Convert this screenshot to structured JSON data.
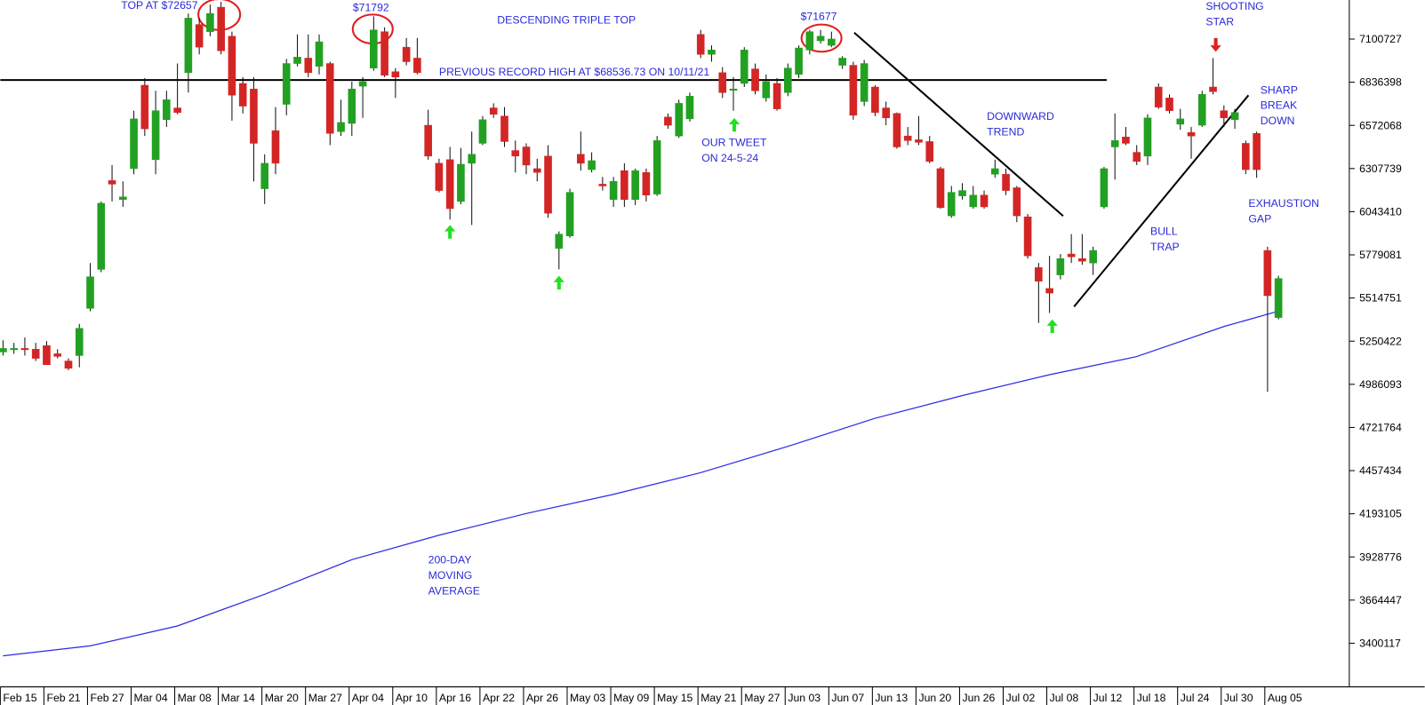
{
  "chart_data": {
    "type": "candlestick",
    "ylim": [
      3133000,
      7340000
    ],
    "yticks": [
      7100727,
      6836398,
      6572068,
      6307739,
      6043410,
      5779081,
      5514751,
      5250422,
      4986093,
      4721764,
      4457434,
      4193105,
      3928776,
      3664447,
      3400117
    ],
    "xlim": [
      -0.25,
      123.5
    ],
    "xticks": [
      {
        "value": 0,
        "label": "Feb 15"
      },
      {
        "value": 4,
        "label": "Feb 21"
      },
      {
        "value": 8,
        "label": "Feb 27"
      },
      {
        "value": 12,
        "label": "Mar 04"
      },
      {
        "value": 16,
        "label": "Mar 08"
      },
      {
        "value": 20,
        "label": "Mar 14"
      },
      {
        "value": 24,
        "label": "Mar 20"
      },
      {
        "value": 28,
        "label": "Mar 27"
      },
      {
        "value": 32,
        "label": "Apr 04"
      },
      {
        "value": 36,
        "label": "Apr 10"
      },
      {
        "value": 40,
        "label": "Apr 16"
      },
      {
        "value": 44,
        "label": "Apr 22"
      },
      {
        "value": 48,
        "label": "Apr 26"
      },
      {
        "value": 52,
        "label": "May 03"
      },
      {
        "value": 56,
        "label": "May 09"
      },
      {
        "value": 60,
        "label": "May 15"
      },
      {
        "value": 64,
        "label": "May 21"
      },
      {
        "value": 68,
        "label": "May 27"
      },
      {
        "value": 72,
        "label": "Jun 03"
      },
      {
        "value": 76,
        "label": "Jun 07"
      },
      {
        "value": 80,
        "label": "Jun 13"
      },
      {
        "value": 84,
        "label": "Jun 20"
      },
      {
        "value": 88,
        "label": "Jun 26"
      },
      {
        "value": 92,
        "label": "Jul 02"
      },
      {
        "value": 96,
        "label": "Jul 08"
      },
      {
        "value": 100,
        "label": "Jul 12"
      },
      {
        "value": 104,
        "label": "Jul 18"
      },
      {
        "value": 108,
        "label": "Jul 24"
      },
      {
        "value": 112,
        "label": "Jul 30"
      },
      {
        "value": 116,
        "label": "Aug 05"
      }
    ],
    "up_color": "#22a022",
    "down_color": "#d42525",
    "open": [
      5184000,
      5201000,
      5206000,
      5201000,
      5223000,
      5173000,
      5129000,
      5162000,
      5451000,
      5690000,
      6234000,
      6118000,
      6307000,
      6818000,
      6362000,
      6607000,
      6679000,
      6895000,
      7190000,
      7146000,
      7296000,
      7118000,
      6829000,
      6795000,
      6184000,
      6540000,
      6701000,
      6951000,
      6984000,
      6934000,
      6951000,
      6534000,
      6584000,
      6812000,
      6923000,
      7146000,
      6901000,
      7051000,
      6984000,
      6573000,
      6340000,
      6362000,
      6106000,
      6340000,
      6462000,
      6679000,
      6629000,
      6418000,
      6440000,
      6307000,
      6384000,
      5818000,
      5895000,
      6395000,
      6301000,
      6212000,
      6118000,
      6295000,
      6118000,
      6284000,
      6151000,
      6623000,
      6507000,
      6612000,
      7129000,
      7007000,
      6895000,
      6790000,
      6829000,
      6918000,
      6740000,
      6829000,
      6773000,
      6884000,
      7034000,
      7090000,
      7062000,
      6940000,
      6940000,
      6718000,
      6807000,
      6679000,
      6645000,
      6507000,
      6484000,
      6473000,
      6307000,
      6018000,
      6140000,
      6073000,
      6145000,
      6273000,
      6273000,
      6190000,
      6012000,
      5701000,
      5573000,
      5656000,
      5784000,
      5756000,
      5729000,
      6073000,
      6440000,
      6501000,
      6407000,
      6384000,
      6807000,
      6740000,
      6579000,
      6529000,
      6573000,
      6807000,
      6662000,
      6607000,
      6462000,
      6523000,
      5806000,
      5395000
    ],
    "high": [
      5256000,
      5240000,
      5273000,
      5240000,
      5251000,
      5201000,
      5145000,
      5356000,
      5729000,
      6106000,
      6329000,
      6229000,
      6662000,
      6862000,
      6784000,
      6784000,
      6951000,
      7257000,
      7229000,
      7312000,
      7329000,
      7146000,
      6868000,
      6868000,
      6395000,
      6684000,
      6979000,
      7129000,
      7129000,
      7129000,
      6962000,
      6729000,
      6840000,
      6868000,
      7240000,
      7173000,
      6923000,
      7107000,
      7107000,
      6668000,
      6368000,
      6440000,
      6434000,
      6534000,
      6629000,
      6707000,
      6684000,
      6479000,
      6462000,
      6368000,
      6451000,
      5923000,
      6184000,
      6534000,
      6407000,
      6256000,
      6256000,
      6340000,
      6307000,
      6307000,
      6507000,
      6645000,
      6729000,
      6773000,
      7157000,
      7062000,
      6929000,
      6868000,
      7051000,
      6951000,
      6884000,
      6862000,
      6951000,
      7062000,
      7157000,
      7157000,
      7146000,
      6996000,
      6962000,
      6973000,
      6818000,
      6718000,
      6651000,
      6562000,
      6629000,
      6507000,
      6318000,
      6201000,
      6218000,
      6201000,
      6173000,
      6362000,
      6307000,
      6201000,
      6029000,
      5729000,
      5773000,
      5784000,
      5906000,
      5906000,
      5829000,
      6318000,
      6645000,
      6562000,
      6451000,
      6640000,
      6829000,
      6762000,
      6673000,
      6562000,
      6784000,
      6984000,
      6695000,
      6673000,
      6479000,
      6534000,
      5829000,
      5651000
    ],
    "low": [
      5162000,
      5173000,
      5162000,
      5129000,
      5106000,
      5145000,
      5073000,
      5090000,
      5434000,
      5673000,
      6106000,
      6073000,
      6273000,
      6507000,
      6273000,
      6562000,
      6640000,
      6773000,
      7007000,
      7118000,
      7007000,
      6601000,
      6645000,
      6229000,
      6090000,
      6273000,
      6634000,
      6934000,
      6868000,
      6884000,
      6451000,
      6507000,
      6507000,
      6618000,
      6907000,
      6868000,
      6740000,
      6940000,
      6884000,
      6362000,
      6162000,
      5995000,
      6090000,
      5962000,
      6451000,
      6618000,
      6440000,
      6284000,
      6273000,
      6229000,
      6006000,
      5690000,
      5884000,
      6295000,
      6284000,
      6173000,
      6073000,
      6073000,
      6084000,
      6106000,
      6140000,
      6551000,
      6495000,
      6595000,
      6984000,
      6962000,
      6740000,
      6662000,
      6807000,
      6762000,
      6718000,
      6662000,
      6751000,
      6862000,
      7007000,
      7073000,
      7051000,
      6918000,
      6607000,
      6690000,
      6629000,
      6573000,
      6429000,
      6451000,
      6451000,
      6340000,
      6062000,
      6006000,
      6118000,
      6062000,
      6062000,
      6251000,
      6145000,
      5979000,
      5756000,
      5362000,
      5423000,
      5629000,
      5729000,
      5718000,
      5656000,
      6062000,
      6240000,
      6451000,
      6329000,
      6329000,
      6673000,
      6645000,
      6545000,
      6368000,
      6562000,
      6762000,
      6562000,
      6551000,
      6273000,
      6251000,
      4940000,
      5384000
    ],
    "close": [
      5206000,
      5206000,
      5201000,
      5145000,
      5106000,
      5157000,
      5084000,
      5329000,
      5645000,
      6095000,
      6212000,
      6134000,
      6612000,
      6551000,
      6662000,
      6729000,
      6651000,
      7229000,
      7051000,
      7257000,
      7029000,
      6757000,
      6690000,
      6462000,
      6340000,
      6340000,
      6951000,
      6990000,
      6895000,
      7084000,
      6523000,
      6590000,
      6795000,
      6840000,
      7157000,
      6879000,
      6868000,
      6962000,
      6895000,
      6384000,
      6173000,
      6062000,
      6334000,
      6395000,
      6607000,
      6640000,
      6473000,
      6384000,
      6329000,
      6284000,
      6034000,
      5906000,
      6162000,
      6340000,
      6356000,
      6201000,
      6229000,
      6118000,
      6295000,
      6145000,
      6479000,
      6573000,
      6707000,
      6751000,
      7007000,
      7034000,
      6773000,
      6795000,
      7034000,
      6784000,
      6840000,
      6673000,
      6923000,
      7046000,
      7146000,
      7118000,
      7101000,
      6984000,
      6634000,
      6951000,
      6651000,
      6618000,
      6440000,
      6479000,
      6468000,
      6351000,
      6068000,
      6162000,
      6173000,
      6145000,
      6073000,
      6307000,
      6173000,
      6018000,
      5773000,
      5617000,
      5545000,
      5756000,
      5767000,
      5740000,
      5806000,
      6307000,
      6479000,
      6462000,
      6351000,
      6618000,
      6684000,
      6662000,
      6612000,
      6507000,
      6762000,
      6779000,
      6618000,
      6651000,
      6301000,
      6301000,
      5529000,
      5634000
    ],
    "moving_average": {
      "color": "#2a2ae6",
      "x": [
        0,
        8,
        16,
        24,
        32,
        40,
        48,
        56,
        64,
        72,
        80,
        88,
        96,
        104,
        112,
        117
      ],
      "values": [
        3323000,
        3384000,
        3506000,
        3700000,
        3912000,
        4062000,
        4195000,
        4312000,
        4445000,
        4606000,
        4778000,
        4917000,
        5045000,
        5156000,
        5340000,
        5434000
      ]
    },
    "reference_line": 6850000,
    "annotations": {
      "top1": "TOP AT $72657",
      "top2": "$71792",
      "pattern": "DESCENDING TRIPLE TOP",
      "top3": "$71677",
      "record": "PREVIOUS RECORD HIGH AT $68536.73 ON 10/11/21",
      "tweet": [
        "OUR TWEET",
        "ON 24-5-24"
      ],
      "downtrend": [
        "DOWNWARD",
        "TREND"
      ],
      "shooting_star": [
        "SHOOTING",
        "STAR"
      ],
      "sharp_break": [
        "SHARP",
        "BREAK",
        "DOWN"
      ],
      "exhaustion_gap": [
        "EXHAUSTION",
        "GAP"
      ],
      "bull_trap": [
        "BULL",
        "TRAP"
      ],
      "moving_average": [
        "200-DAY",
        "MOVING",
        "AVERAGE"
      ]
    }
  }
}
